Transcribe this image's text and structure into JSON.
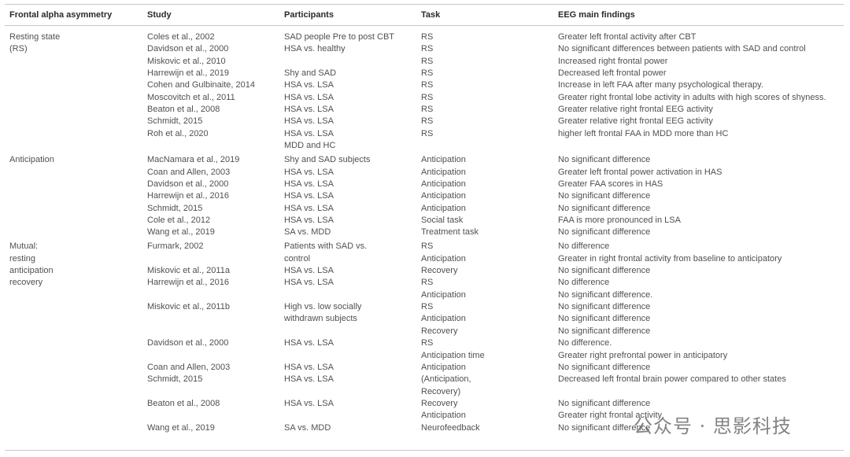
{
  "table": {
    "header": [
      "Frontal alpha asymmetry",
      "Study",
      "Participants",
      "Task",
      "EEG main findings"
    ],
    "sections": [
      {
        "rows": [
          [
            "Resting state",
            "Coles et al., 2002",
            "SAD people Pre to post CBT",
            "RS",
            "Greater left frontal activity after CBT"
          ],
          [
            "(RS)",
            "Davidson et al., 2000",
            "HSA vs. healthy",
            "RS",
            "No significant differences between patients with SAD and control"
          ],
          [
            null,
            "Miskovic et al., 2010",
            null,
            "RS",
            "Increased right frontal power"
          ],
          [
            null,
            "Harrewijn et al., 2019",
            "Shy and SAD",
            "RS",
            "Decreased left frontal power"
          ],
          [
            null,
            "Cohen and Gulbinaite, 2014",
            "HSA vs. LSA",
            "RS",
            "Increase in left FAA after many psychological therapy."
          ],
          [
            null,
            "Moscovitch et al., 2011",
            "HSA vs. LSA",
            "RS",
            "Greater right frontal lobe activity in adults with high scores of shyness."
          ],
          [
            null,
            "Beaton et al., 2008",
            "HSA vs. LSA",
            "RS",
            "Greater relative right frontal EEG activity"
          ],
          [
            null,
            "Schmidt, 2015",
            "HSA vs. LSA",
            "RS",
            "Greater relative right frontal EEG activity"
          ],
          [
            null,
            "Roh et al., 2020",
            "HSA vs. LSA",
            "RS",
            "higher left frontal FAA in MDD more than HC"
          ],
          [
            null,
            null,
            "MDD and HC",
            null,
            null
          ]
        ]
      },
      {
        "rows": [
          [
            "Anticipation",
            "MacNamara et al., 2019",
            "Shy and SAD subjects",
            "Anticipation",
            "No significant difference"
          ],
          [
            null,
            "Coan and Allen, 2003",
            "HSA vs. LSA",
            "Anticipation",
            "Greater left frontal power activation in HAS"
          ],
          [
            null,
            "Davidson et al., 2000",
            "HSA vs. LSA",
            "Anticipation",
            "Greater FAA scores in HAS"
          ],
          [
            null,
            "Harrewijn et al., 2016",
            "HSA vs. LSA",
            "Anticipation",
            "No significant difference"
          ],
          [
            null,
            "Schmidt, 2015",
            "HSA vs. LSA",
            "Anticipation",
            "No significant difference"
          ],
          [
            null,
            "Cole et al., 2012",
            "HSA vs. LSA",
            "Social task",
            "FAA is more pronounced in LSA"
          ],
          [
            null,
            "Wang et al., 2019",
            "SA vs. MDD",
            "Treatment task",
            "No significant difference"
          ]
        ]
      },
      {
        "rows": [
          [
            "Mutual:",
            "Furmark, 2002",
            "Patients with SAD vs.",
            "RS",
            "No difference"
          ],
          [
            "resting",
            null,
            "control",
            "Anticipation",
            "Greater in right frontal activity from baseline to anticipatory"
          ],
          [
            "anticipation",
            "Miskovic et al., 2011a",
            "HSA vs. LSA",
            "Recovery",
            "No significant difference"
          ],
          [
            "recovery",
            "Harrewijn et al., 2016",
            "HSA vs. LSA",
            "RS",
            "No difference"
          ],
          [
            null,
            null,
            null,
            "Anticipation",
            "No significant difference."
          ],
          [
            null,
            "Miskovic et al., 2011b",
            "High vs. low socially",
            "RS",
            "No significant difference"
          ],
          [
            null,
            null,
            "withdrawn subjects",
            "Anticipation",
            "No significant difference"
          ],
          [
            null,
            null,
            null,
            "Recovery",
            "No significant difference"
          ],
          [
            null,
            "Davidson et al., 2000",
            "HSA vs. LSA",
            "RS",
            "No difference."
          ],
          [
            null,
            null,
            null,
            "Anticipation time",
            "Greater right prefrontal power in anticipatory"
          ],
          [
            null,
            "Coan and Allen, 2003",
            "HSA vs. LSA",
            "Anticipation",
            "No significant difference"
          ],
          [
            null,
            "Schmidt, 2015",
            "HSA vs. LSA",
            "(Anticipation,",
            "Decreased left frontal brain power compared to other states"
          ],
          [
            null,
            null,
            null,
            "Recovery)",
            null
          ],
          [
            null,
            "Beaton et al., 2008",
            "HSA vs. LSA",
            "Recovery",
            "No significant difference"
          ],
          [
            null,
            null,
            null,
            "Anticipation",
            "Greater right frontal activity"
          ],
          [
            null,
            "Wang et al., 2019",
            "SA vs. MDD",
            "Neurofeedback",
            "No significant difference"
          ]
        ]
      }
    ]
  },
  "watermark": "公众号 · 思影科技"
}
